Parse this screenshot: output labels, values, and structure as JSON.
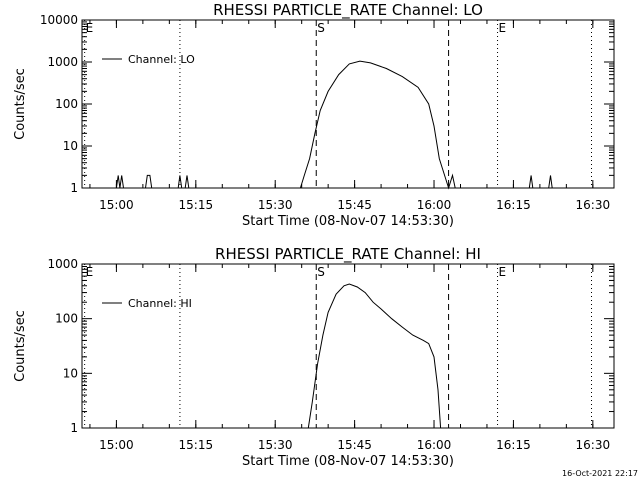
{
  "footer": {
    "timestamp": "16-Oct-2021 22:17"
  },
  "chart_data": [
    {
      "type": "line",
      "title": "RHESSI PARTICLE_RATE Channel: LO",
      "xlabel": "Start Time (08-Nov-07 14:53:30)",
      "ylabel": "Counts/sec",
      "yscale": "log",
      "ylim": [
        1,
        10000
      ],
      "yticks": [
        "1",
        "10",
        "100",
        "1000",
        "10000"
      ],
      "xlim": [
        "14:53:30",
        "16:34:00"
      ],
      "xticks": [
        "15:00",
        "15:15",
        "15:30",
        "15:45",
        "16:00",
        "16:15",
        "16:30"
      ],
      "legend": {
        "position": "top-left",
        "label": "Channel: LO"
      },
      "markers": [
        {
          "label": "E",
          "time": "14:54:00",
          "style": "dotted"
        },
        {
          "label": "",
          "time": "15:12:00",
          "style": "dotted"
        },
        {
          "label": "S",
          "time": "15:37:45",
          "style": "dashed"
        },
        {
          "label": "",
          "time": "16:02:45",
          "style": "dashed"
        },
        {
          "label": "E",
          "time": "16:12:00",
          "style": "dotted"
        },
        {
          "label": "",
          "time": "16:29:45",
          "style": "dotted"
        }
      ],
      "series": [
        {
          "name": "Channel: LO",
          "points": [
            [
              "15:00:00",
              1
            ],
            [
              "15:00:20",
              2
            ],
            [
              "15:00:40",
              1
            ],
            [
              "15:01:00",
              2
            ],
            [
              "15:01:20",
              1
            ],
            [
              "15:05:30",
              1
            ],
            [
              "15:05:50",
              2
            ],
            [
              "15:06:20",
              2
            ],
            [
              "15:06:40",
              1
            ],
            [
              "15:11:40",
              1
            ],
            [
              "15:12:00",
              2
            ],
            [
              "15:12:20",
              1
            ],
            [
              "15:13:00",
              1
            ],
            [
              "15:13:20",
              2
            ],
            [
              "15:13:40",
              1
            ],
            [
              "15:34:45",
              1
            ],
            [
              "15:35:30",
              2
            ],
            [
              "15:36:30",
              5
            ],
            [
              "15:37:30",
              20
            ],
            [
              "15:38:30",
              70
            ],
            [
              "15:40:00",
              200
            ],
            [
              "15:42:00",
              500
            ],
            [
              "15:44:00",
              900
            ],
            [
              "15:46:00",
              1050
            ],
            [
              "15:48:00",
              950
            ],
            [
              "15:51:00",
              700
            ],
            [
              "15:54:00",
              450
            ],
            [
              "15:57:00",
              250
            ],
            [
              "15:59:00",
              100
            ],
            [
              "16:00:00",
              30
            ],
            [
              "16:01:00",
              5
            ],
            [
              "16:02:00",
              2
            ],
            [
              "16:02:45",
              1
            ],
            [
              "16:03:30",
              2
            ],
            [
              "16:04:00",
              1
            ],
            [
              "16:18:00",
              1
            ],
            [
              "16:18:20",
              2
            ],
            [
              "16:18:40",
              1
            ],
            [
              "16:21:40",
              1
            ],
            [
              "16:22:00",
              2
            ],
            [
              "16:22:20",
              1
            ]
          ]
        }
      ]
    },
    {
      "type": "line",
      "title": "RHESSI PARTICLE_RATE Channel: HI",
      "xlabel": "Start Time (08-Nov-07 14:53:30)",
      "ylabel": "Counts/sec",
      "yscale": "log",
      "ylim": [
        1,
        1000
      ],
      "yticks": [
        "1",
        "10",
        "100",
        "1000"
      ],
      "xlim": [
        "14:53:30",
        "16:34:00"
      ],
      "xticks": [
        "15:00",
        "15:15",
        "15:30",
        "15:45",
        "16:00",
        "16:15",
        "16:30"
      ],
      "legend": {
        "position": "top-left",
        "label": "Channel: HI"
      },
      "markers": [
        {
          "label": "E",
          "time": "14:54:00",
          "style": "dotted"
        },
        {
          "label": "",
          "time": "15:12:00",
          "style": "dotted"
        },
        {
          "label": "S",
          "time": "15:37:45",
          "style": "dashed"
        },
        {
          "label": "",
          "time": "16:02:45",
          "style": "dashed"
        },
        {
          "label": "E",
          "time": "16:12:00",
          "style": "dotted"
        },
        {
          "label": "",
          "time": "16:29:45",
          "style": "dotted"
        }
      ],
      "series": [
        {
          "name": "Channel: HI",
          "points": [
            [
              "15:36:15",
              1
            ],
            [
              "15:37:00",
              3
            ],
            [
              "15:38:00",
              15
            ],
            [
              "15:39:00",
              50
            ],
            [
              "15:40:00",
              130
            ],
            [
              "15:41:30",
              280
            ],
            [
              "15:43:00",
              400
            ],
            [
              "15:44:00",
              430
            ],
            [
              "15:45:30",
              380
            ],
            [
              "15:47:00",
              300
            ],
            [
              "15:48:30",
              200
            ],
            [
              "15:50:00",
              150
            ],
            [
              "15:52:00",
              100
            ],
            [
              "15:54:00",
              70
            ],
            [
              "15:56:00",
              50
            ],
            [
              "15:58:00",
              40
            ],
            [
              "15:59:00",
              35
            ],
            [
              "16:00:00",
              20
            ],
            [
              "16:00:45",
              5
            ],
            [
              "16:01:15",
              1
            ]
          ]
        }
      ]
    }
  ]
}
